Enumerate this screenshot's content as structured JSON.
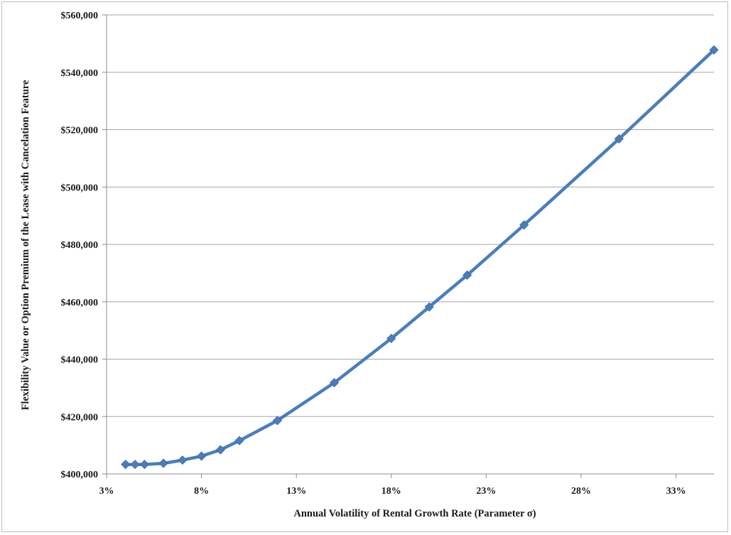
{
  "chart_data": {
    "type": "line",
    "title": "",
    "xlabel": "Annual Volatility of Rental Growth Rate (Parameter σ)",
    "ylabel": "Flexibility Value or Option Premium of the Lease with Cancelation Feature",
    "xlim": [
      3,
      35
    ],
    "ylim": [
      400000,
      560000
    ],
    "x_ticks": [
      3,
      8,
      13,
      18,
      23,
      28,
      33
    ],
    "x_tick_labels": [
      "3%",
      "8%",
      "13%",
      "18%",
      "23%",
      "28%",
      "33%"
    ],
    "y_ticks": [
      400000,
      420000,
      440000,
      460000,
      480000,
      500000,
      520000,
      540000,
      560000
    ],
    "y_tick_labels": [
      "$400,000",
      "$420,000",
      "$440,000",
      "$460,000",
      "$480,000",
      "$500,000",
      "$520,000",
      "$540,000",
      "$560,000"
    ],
    "grid": true,
    "legend": "none",
    "series": [
      {
        "color": "#4a7ebb",
        "marker": "diamond",
        "x": [
          4,
          4.5,
          5,
          6,
          7,
          8,
          9,
          10,
          12,
          15,
          18,
          20,
          22,
          25,
          30,
          35
        ],
        "y": [
          403300,
          403300,
          403300,
          403700,
          404800,
          406200,
          408400,
          411600,
          418600,
          431800,
          447200,
          458200,
          469300,
          486800,
          516800,
          547800
        ]
      }
    ]
  }
}
